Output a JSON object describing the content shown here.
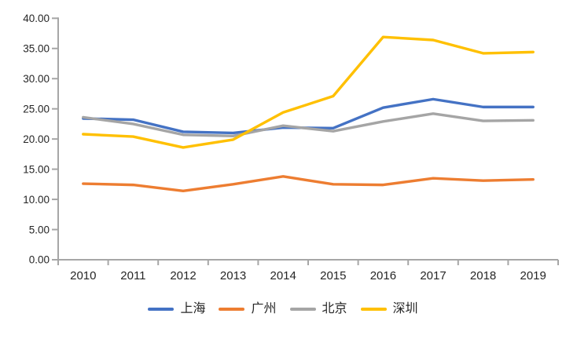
{
  "chart_data": {
    "type": "line",
    "categories": [
      "2010",
      "2011",
      "2012",
      "2013",
      "2014",
      "2015",
      "2016",
      "2017",
      "2018",
      "2019"
    ],
    "series": [
      {
        "key": "shanghai",
        "name": "上海",
        "color": "#4472C4",
        "values": [
          23.4,
          23.2,
          21.2,
          21.0,
          21.9,
          21.8,
          25.2,
          26.6,
          25.3,
          25.3
        ]
      },
      {
        "key": "guangzhou",
        "name": "广州",
        "color": "#ED7D31",
        "values": [
          12.6,
          12.4,
          11.4,
          12.5,
          13.8,
          12.5,
          12.4,
          13.5,
          13.1,
          13.3
        ]
      },
      {
        "key": "beijing",
        "name": "北京",
        "color": "#A5A5A5",
        "values": [
          23.6,
          22.5,
          20.7,
          20.5,
          22.2,
          21.3,
          22.9,
          24.2,
          23.0,
          23.1
        ]
      },
      {
        "key": "shenzhen",
        "name": "深圳",
        "color": "#FFC000",
        "values": [
          20.8,
          20.4,
          18.6,
          19.9,
          24.4,
          27.1,
          36.9,
          36.4,
          34.2,
          34.4
        ]
      }
    ],
    "title": "",
    "xlabel": "",
    "ylabel": "",
    "ylim": [
      0,
      40
    ],
    "y_tick_step": 5,
    "y_tick_labels": [
      "0.00",
      "5.00",
      "10.00",
      "15.00",
      "20.00",
      "25.00",
      "30.00",
      "35.00",
      "40.00"
    ],
    "grid": false,
    "legend_position": "bottom",
    "style": {
      "axis_color": "#A6A6A6",
      "text_color": "#262626",
      "background": "#FFFFFF",
      "line_width": 3.4
    }
  }
}
